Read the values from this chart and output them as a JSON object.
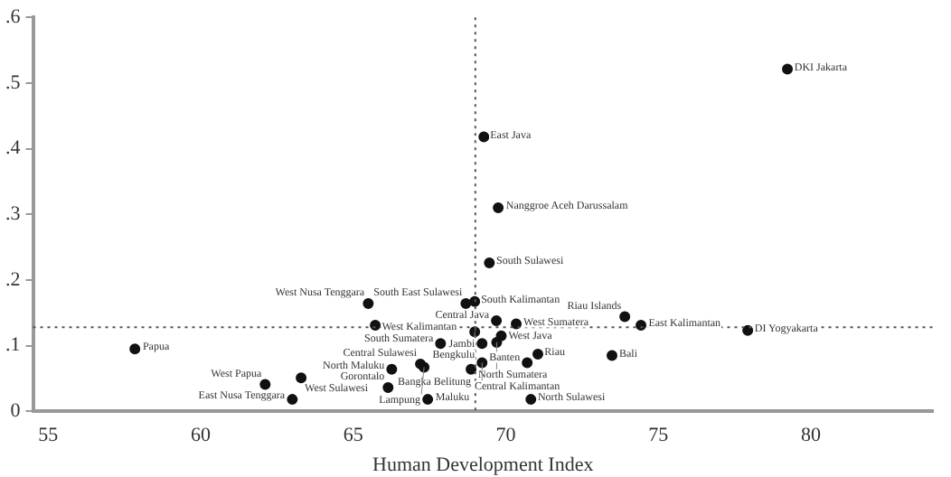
{
  "chart_data": {
    "type": "scatter",
    "xlabel": "Human Development Index",
    "marker": "circle",
    "grid": false,
    "legend": false,
    "xlim": [
      54.5,
      84
    ],
    "xticks": [
      55,
      60,
      65,
      70,
      75,
      80
    ],
    "ylim": [
      0,
      0.6
    ],
    "yticks": [
      0,
      {
        "value": 0.1,
        "label": ".1"
      },
      {
        "value": 0.2,
        "label": ".2"
      },
      {
        "value": 0.3,
        "label": ".3"
      },
      {
        "value": 0.4,
        "label": ".4"
      },
      {
        "value": 0.5,
        "label": ".5"
      },
      {
        "value": 0.6,
        "label": ".6"
      }
    ],
    "ref_lines": [
      {
        "axis": "x",
        "value": 69.0,
        "line_style": "dotted",
        "color": "#555555"
      },
      {
        "axis": "y",
        "value": 0.128,
        "line_style": "dotted",
        "color": "#555555"
      }
    ],
    "series": [
      {
        "color": "#111111",
        "x": [
          79.23,
          69.28,
          69.75,
          69.46,
          65.49,
          68.69,
          68.98,
          69.69,
          70.34,
          73.9,
          74.43,
          77.93,
          65.72,
          68.98,
          69.85,
          69.7,
          69.22,
          67.86,
          71.05,
          73.48,
          70.7,
          68.86,
          69.22,
          67.2,
          67.32,
          66.26,
          66.14,
          67.44,
          70.82,
          57.84,
          62.11,
          63.29,
          63.0
        ],
        "values": [
          0.521,
          0.418,
          0.31,
          0.226,
          0.164,
          0.164,
          0.167,
          0.138,
          0.133,
          0.144,
          0.131,
          0.123,
          0.131,
          0.121,
          0.115,
          0.105,
          0.103,
          0.103,
          0.087,
          0.085,
          0.074,
          0.064,
          0.074,
          0.072,
          0.067,
          0.064,
          0.036,
          0.018,
          0.018,
          0.095,
          0.041,
          0.051,
          0.018
        ]
      }
    ],
    "annotations": [
      {
        "text": "DKI Jakarta",
        "x": 79.23,
        "y": 0.521
      },
      {
        "text": "East Java",
        "x": 69.28,
        "y": 0.418
      },
      {
        "text": "Nanggroe Aceh Darussalam",
        "x": 69.75,
        "y": 0.31
      },
      {
        "text": "South Sulawesi",
        "x": 69.46,
        "y": 0.226
      },
      {
        "text": "West Nusa Tenggara",
        "x": 65.49,
        "y": 0.164
      },
      {
        "text": "South East Sulawesi",
        "x": 68.69,
        "y": 0.164
      },
      {
        "text": "South Kalimantan",
        "x": 68.98,
        "y": 0.167
      },
      {
        "text": "Central Java",
        "x": 69.69,
        "y": 0.138
      },
      {
        "text": "West Sumatera",
        "x": 70.34,
        "y": 0.133
      },
      {
        "text": "Riau Islands",
        "x": 73.9,
        "y": 0.144
      },
      {
        "text": "East Kalimantan",
        "x": 74.43,
        "y": 0.131
      },
      {
        "text": "DI Yogyakarta",
        "x": 77.93,
        "y": 0.123
      },
      {
        "text": "West Kalimantan",
        "x": 65.72,
        "y": 0.131
      },
      {
        "text": "Bengkulu",
        "x": 68.98,
        "y": 0.121
      },
      {
        "text": "West Java",
        "x": 69.85,
        "y": 0.115
      },
      {
        "text": "North Sumatera",
        "x": 69.7,
        "y": 0.105
      },
      {
        "text": "Jambi",
        "x": 69.22,
        "y": 0.103
      },
      {
        "text": "South Sumatera",
        "x": 67.86,
        "y": 0.103
      },
      {
        "text": "Riau",
        "x": 71.05,
        "y": 0.087
      },
      {
        "text": "Bali",
        "x": 73.48,
        "y": 0.085
      },
      {
        "text": "Banten",
        "x": 70.7,
        "y": 0.074
      },
      {
        "text": "Bangka Belitung",
        "x": 68.86,
        "y": 0.064
      },
      {
        "text": "Central Kalimantan",
        "x": 69.22,
        "y": 0.074
      },
      {
        "text": "Central Sulawesi",
        "x": 67.2,
        "y": 0.072
      },
      {
        "text": "Lampung",
        "x": 67.32,
        "y": 0.067
      },
      {
        "text": "North Maluku",
        "x": 66.26,
        "y": 0.064
      },
      {
        "text": "Gorontalo",
        "x": 66.14,
        "y": 0.036
      },
      {
        "text": "Maluku",
        "x": 67.44,
        "y": 0.018
      },
      {
        "text": "North Sulawesi",
        "x": 70.82,
        "y": 0.018
      },
      {
        "text": "Papua",
        "x": 57.84,
        "y": 0.095
      },
      {
        "text": "West Papua",
        "x": 62.11,
        "y": 0.041
      },
      {
        "text": "West Sulawesi",
        "x": 63.29,
        "y": 0.051
      },
      {
        "text": "East Nusa Tenggara",
        "x": 63.0,
        "y": 0.018
      }
    ]
  }
}
